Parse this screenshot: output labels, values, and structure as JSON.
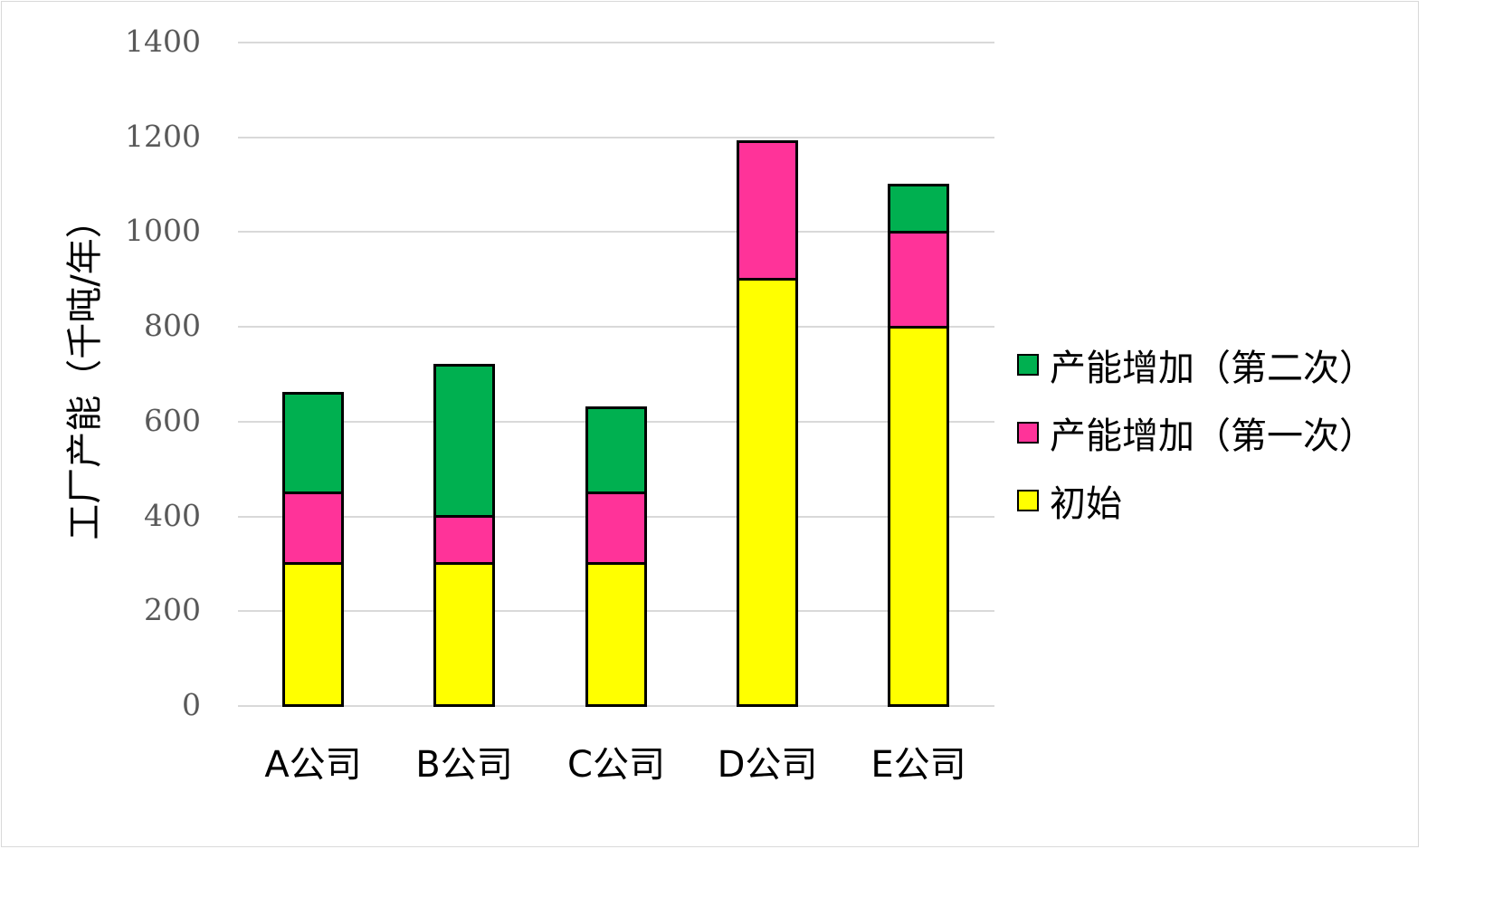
{
  "chart_data": {
    "type": "bar",
    "stacked": true,
    "title": "",
    "xlabel": "",
    "ylabel": "工厂产能（千吨/年）",
    "ylim": [
      0,
      1400
    ],
    "yticks": [
      0,
      200,
      400,
      600,
      800,
      1000,
      1200,
      1400
    ],
    "grid": true,
    "legend_position": "right",
    "categories": [
      "A公司",
      "B公司",
      "C公司",
      "D公司",
      "E公司"
    ],
    "series": [
      {
        "name": "初始",
        "color": "#FFFF00",
        "values": [
          300,
          300,
          300,
          900,
          800
        ]
      },
      {
        "name": "产能增加（第一次）",
        "color": "#FF3399",
        "values": [
          150,
          100,
          150,
          290,
          200
        ]
      },
      {
        "name": "产能增加（第二次）",
        "color": "#00B050",
        "values": [
          210,
          320,
          180,
          0,
          100
        ]
      }
    ]
  },
  "axis": {
    "y_title": "工厂产能（千吨/年）",
    "y_ticks": [
      "0",
      "200",
      "400",
      "600",
      "800",
      "1000",
      "1200",
      "1400"
    ]
  },
  "legend": [
    {
      "label": "产能增加（第二次）",
      "color": "#00B050"
    },
    {
      "label": "产能增加（第一次）",
      "color": "#FF3399"
    },
    {
      "label": "初始",
      "color": "#FFFF00"
    }
  ]
}
